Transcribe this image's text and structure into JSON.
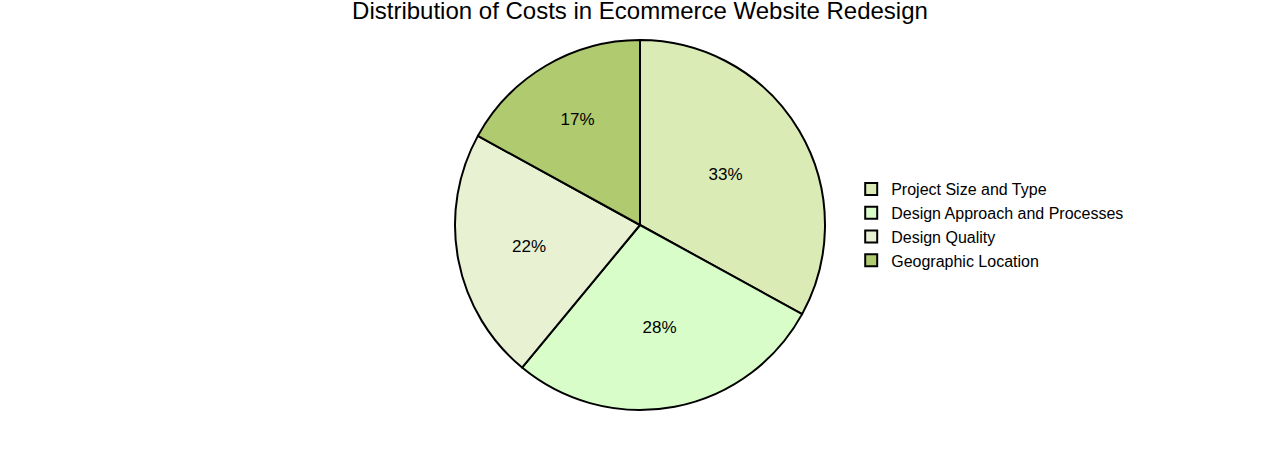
{
  "chart_data": {
    "type": "pie",
    "title": "Distribution of Costs in Ecommerce Website Redesign",
    "categories": [
      "Project Size and Type",
      "Design Approach and Processes",
      "Design Quality",
      "Geographic Location"
    ],
    "values": [
      33,
      28,
      22,
      17
    ],
    "value_labels": [
      "33%",
      "28%",
      "22%",
      "17%"
    ],
    "colors": [
      "#dbebb6",
      "#d9fdc9",
      "#e8f2d3",
      "#b0cb6f"
    ],
    "data_labels": true,
    "legend": "right"
  }
}
